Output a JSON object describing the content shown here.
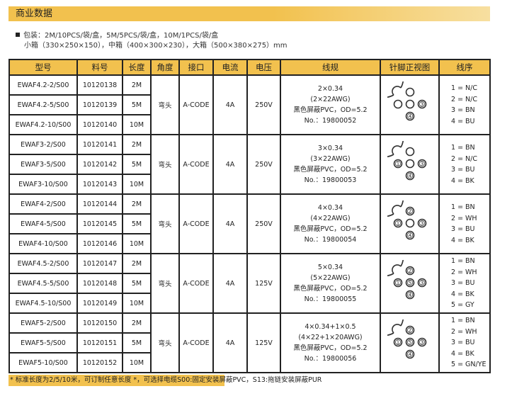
{
  "title": "商业数据",
  "packaging": {
    "line1": "包装：2M/10PCS/袋/盒，5M/5PCS/袋/盒，10M/1PCS/袋/盒",
    "line2": "小箱（330×250×150），中箱（400×300×230），大箱（500×380×275）mm"
  },
  "headers": [
    "型号",
    "料号",
    "长度",
    "角度",
    "接口",
    "电流",
    "电压",
    "线规",
    "针脚正视图",
    "线序"
  ],
  "groups": [
    {
      "angle": "弯头",
      "interface": "A-CODE",
      "current": "4A",
      "voltage": "250V",
      "spec": [
        "2×0.34",
        "(2×22AWG)",
        "黑色屏蔽PVC，OD=5.2",
        "No.：19800052"
      ],
      "pins": [
        "",
        "",
        "",
        "3",
        "4"
      ],
      "wires": [
        "1 = N/C",
        "2 = N/C",
        "3 = BN",
        "4 = BU"
      ],
      "rows": [
        {
          "model": "EWAF4.2-2/S00",
          "part": "10120138",
          "length": "2M"
        },
        {
          "model": "EWAF4.2-5/S00",
          "part": "10120139",
          "length": "5M"
        },
        {
          "model": "EWAF4.2-10/S00",
          "part": "10120140",
          "length": "10M"
        }
      ]
    },
    {
      "angle": "弯头",
      "interface": "A-CODE",
      "current": "4A",
      "voltage": "250V",
      "spec": [
        "3×0.34",
        "(3×22AWG)",
        "黑色屏蔽PVC，OD=5.2",
        "No.：19800053"
      ],
      "pins": [
        "1",
        "",
        "",
        "3",
        "4"
      ],
      "wires": [
        "1 = BN",
        "2 = N/C",
        "3 = BU",
        "4 = BK"
      ],
      "rows": [
        {
          "model": "EWAF3-2/S00",
          "part": "10120141",
          "length": "2M"
        },
        {
          "model": "EWAF3-5/S00",
          "part": "10120142",
          "length": "5M"
        },
        {
          "model": "EWAF3-10/S00",
          "part": "10120143",
          "length": "10M"
        }
      ]
    },
    {
      "angle": "弯头",
      "interface": "A-CODE",
      "current": "4A",
      "voltage": "250V",
      "spec": [
        "4×0.34",
        "(4×22AWG)",
        "黑色屏蔽PVC，OD=5.2",
        "No.：19800054"
      ],
      "pins": [
        "1",
        "2",
        "",
        "3",
        "4"
      ],
      "wires": [
        "1 = BN",
        "2 = WH",
        "3 = BU",
        "4 = BK"
      ],
      "rows": [
        {
          "model": "EWAF4-2/S00",
          "part": "10120144",
          "length": "2M"
        },
        {
          "model": "EWAF4-5/S00",
          "part": "10120145",
          "length": "5M"
        },
        {
          "model": "EWAF4-10/S00",
          "part": "10120146",
          "length": "10M"
        }
      ]
    },
    {
      "angle": "弯头",
      "interface": "A-CODE",
      "current": "4A",
      "voltage": "125V",
      "spec": [
        "5×0.34",
        "(5×22AWG)",
        "黑色屏蔽PVC，OD=5.2",
        "No.：19800055"
      ],
      "pins": [
        "1",
        "2",
        "5",
        "3",
        "4"
      ],
      "wires": [
        "1 = BN",
        "2 = WH",
        "3 = BU",
        "4 = BK",
        "5 = GY"
      ],
      "rows": [
        {
          "model": "EWAF4.5-2/S00",
          "part": "10120147",
          "length": "2M"
        },
        {
          "model": "EWAF4.5-5/S00",
          "part": "10120148",
          "length": "5M"
        },
        {
          "model": "EWAF4.5-10/S00",
          "part": "10120149",
          "length": "10M"
        }
      ]
    },
    {
      "angle": "弯头",
      "interface": "A-CODE",
      "current": "4A",
      "voltage": "125V",
      "spec": [
        "4×0.34+1×0.5",
        "(4×22+1×20AWG)",
        "黑色屏蔽PVC，OD=5.2",
        "No.：19800056"
      ],
      "pins": [
        "1",
        "2",
        "5",
        "3",
        "4"
      ],
      "wires": [
        "1 = BN",
        "2 = WH",
        "3 = BU",
        "4 = BK",
        "5 = GN/YE"
      ],
      "rows": [
        {
          "model": "EWAF5-2/S00",
          "part": "10120150",
          "length": "2M"
        },
        {
          "model": "EWAF5-5/S00",
          "part": "10120151",
          "length": "5M"
        },
        {
          "model": "EWAF5-10/S00",
          "part": "10120152",
          "length": "10M"
        }
      ]
    }
  ],
  "footnote": "* 标准长度为2/5/10米，可订制任意长度 *，可选择电缆S00:固定安装屏蔽PVC，S13:拖链安装屏蔽PUR",
  "colors": {
    "accent": "#f2c14e"
  }
}
